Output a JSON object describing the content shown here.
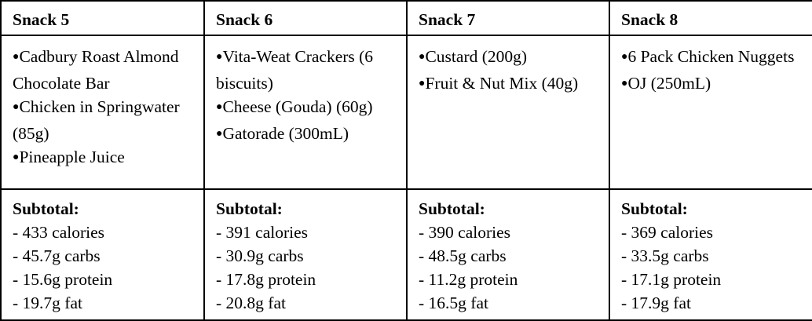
{
  "columns": [
    {
      "header": "Snack 5",
      "items": [
        "Cadbury Roast Almond Chocolate Bar",
        "Chicken in Springwater (85g)",
        "Pineapple Juice"
      ],
      "subtotal_label": "Subtotal:",
      "subtotal": [
        "- 433 calories",
        "- 45.7g carbs",
        "- 15.6g protein",
        "- 19.7g fat"
      ]
    },
    {
      "header": "Snack 6",
      "items": [
        "Vita-Weat Crackers (6 biscuits)",
        "Cheese (Gouda) (60g)",
        "Gatorade (300mL)"
      ],
      "subtotal_label": "Subtotal:",
      "subtotal": [
        "- 391 calories",
        "- 30.9g carbs",
        "- 17.8g protein",
        "- 20.8g fat"
      ]
    },
    {
      "header": "Snack 7",
      "items": [
        "Custard (200g)",
        "Fruit & Nut Mix (40g)"
      ],
      "subtotal_label": "Subtotal:",
      "subtotal": [
        "- 390 calories",
        "- 48.5g carbs",
        "- 11.2g protein",
        "- 16.5g fat"
      ]
    },
    {
      "header": "Snack 8",
      "items": [
        "6 Pack Chicken Nuggets",
        "OJ (250mL)"
      ],
      "subtotal_label": "Subtotal:",
      "subtotal": [
        "- 369 calories",
        "- 33.5g carbs",
        "- 17.1g protein",
        "- 17.9g fat"
      ]
    }
  ]
}
